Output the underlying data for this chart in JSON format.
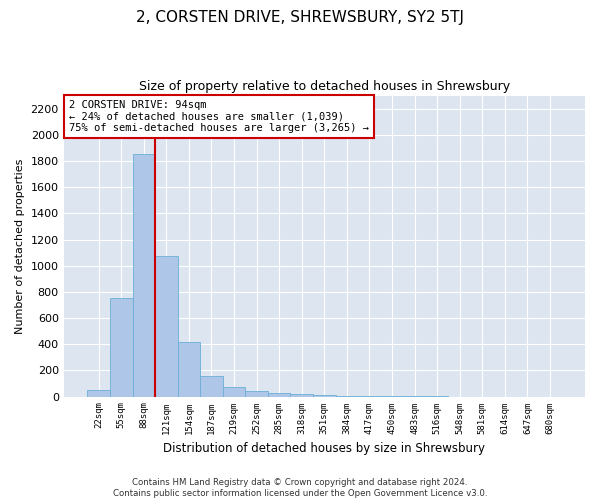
{
  "title": "2, CORSTEN DRIVE, SHREWSBURY, SY2 5TJ",
  "subtitle": "Size of property relative to detached houses in Shrewsbury",
  "xlabel": "Distribution of detached houses by size in Shrewsbury",
  "ylabel": "Number of detached properties",
  "bar_values": [
    50,
    750,
    1850,
    1075,
    415,
    155,
    75,
    45,
    30,
    20,
    10,
    5,
    3,
    2,
    1,
    1,
    0,
    0,
    0,
    0,
    0
  ],
  "bar_labels": [
    "22sqm",
    "55sqm",
    "88sqm",
    "121sqm",
    "154sqm",
    "187sqm",
    "219sqm",
    "252sqm",
    "285sqm",
    "318sqm",
    "351sqm",
    "384sqm",
    "417sqm",
    "450sqm",
    "483sqm",
    "516sqm",
    "548sqm",
    "581sqm",
    "614sqm",
    "647sqm",
    "680sqm"
  ],
  "bar_color": "#aec7e8",
  "bar_edge_color": "#6baed6",
  "annotation_box_text": "2 CORSTEN DRIVE: 94sqm\n← 24% of detached houses are smaller (1,039)\n75% of semi-detached houses are larger (3,265) →",
  "annotation_box_color": "#ffffff",
  "annotation_box_edge_color": "#cc0000",
  "vline_color": "#cc0000",
  "ylim": [
    0,
    2300
  ],
  "yticks": [
    0,
    200,
    400,
    600,
    800,
    1000,
    1200,
    1400,
    1600,
    1800,
    2000,
    2200
  ],
  "bg_color": "#dde5f0",
  "footer_line1": "Contains HM Land Registry data © Crown copyright and database right 2024.",
  "footer_line2": "Contains public sector information licensed under the Open Government Licence v3.0.",
  "title_fontsize": 11,
  "subtitle_fontsize": 9,
  "vline_bin_index": 2.5
}
